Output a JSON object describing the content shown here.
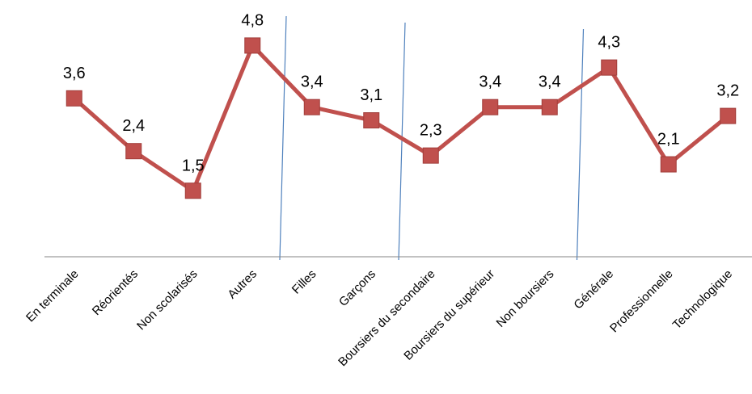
{
  "chart_data": {
    "type": "line",
    "categories": [
      "En terminale",
      "Réorientés",
      "Non scolarisés",
      "Autres",
      "Filles",
      "Garçons",
      "Boursiers du secondaire",
      "Boursiers du supérieur",
      "Non boursiers",
      "Générale",
      "Professionnelle",
      "Technologique"
    ],
    "series": [
      {
        "values": [
          3.6,
          2.4,
          1.5,
          4.8,
          3.4,
          3.1,
          2.3,
          3.4,
          3.4,
          4.3,
          2.1,
          3.2
        ],
        "data_labels": [
          "3,6",
          "2,4",
          "1,5",
          "4,8",
          "3,4",
          "3,1",
          "2,3",
          "3,4",
          "3,4",
          "4,3",
          "2,1",
          "3,2"
        ],
        "color": "#C0504D"
      }
    ],
    "separator_after_categories": [
      "Autres",
      "Garçons",
      "Non boursiers"
    ],
    "separator_color": "#4F81BD",
    "axis_color": "#868686",
    "ylim": [
      0,
      5
    ],
    "grid": false,
    "legend": "none"
  }
}
